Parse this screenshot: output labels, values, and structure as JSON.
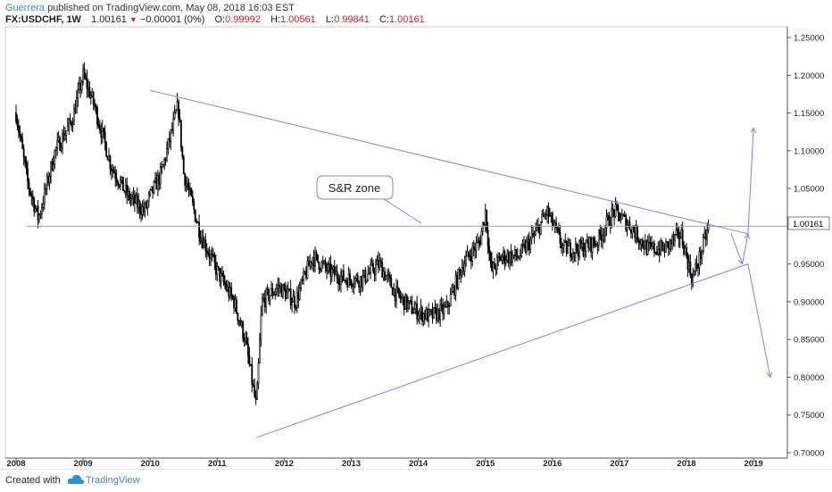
{
  "header": {
    "author": "Guerrera",
    "published": "published on TradingView.com, May 08, 2018 16:03 EST",
    "symbol": "FX:USDCHF, 1W",
    "price": "1.00161",
    "change": "−0.00001 (0%)",
    "o_label": "O:",
    "o_value": "0.99992",
    "h_label": "H:",
    "h_value": "1.00561",
    "l_label": "L:",
    "l_value": "0.99841",
    "c_label": "C:",
    "c_value": "1.00161"
  },
  "footer": {
    "created_with": "Created with",
    "brand": "TradingView",
    "logo_icon": "cloud-icon"
  },
  "colors": {
    "candle": "#000000",
    "trendline": "#8080f0",
    "sr_line": "#f08080",
    "price_label_bg": "#ffffff"
  },
  "chart_data": {
    "type": "line",
    "style": "candlestick",
    "interval": "1W",
    "x_ticks": [
      "2008",
      "2009",
      "2010",
      "2011",
      "2012",
      "2013",
      "2014",
      "2015",
      "2016",
      "2017",
      "2018",
      "2019"
    ],
    "y_ticks": [
      "0.70000",
      "0.75000",
      "0.80000",
      "0.85000",
      "0.90000",
      "0.95000",
      "1.00161",
      "1.05000",
      "1.10000",
      "1.15000",
      "1.20000",
      "1.25000"
    ],
    "ylim": [
      0.7,
      1.25
    ],
    "current_price_label": "1.00161",
    "annotation": "S&R zone",
    "series": [
      {
        "x": [
          "2008-01",
          "2008-03",
          "2008-05",
          "2008-08",
          "2008-11",
          "2009-01",
          "2009-03",
          "2009-06",
          "2009-09",
          "2009-12",
          "2010-01",
          "2010-03",
          "2010-06",
          "2010-07",
          "2010-10",
          "2011-01",
          "2011-04",
          "2011-06",
          "2011-08",
          "2011-09",
          "2011-12",
          "2012-03",
          "2012-06",
          "2012-09",
          "2012-12",
          "2013-03",
          "2013-06",
          "2013-09",
          "2013-12",
          "2014-03",
          "2014-06",
          "2014-09",
          "2014-12",
          "2015-01",
          "2015-02",
          "2015-04",
          "2015-07",
          "2015-10",
          "2015-12",
          "2016-03",
          "2016-06",
          "2016-09",
          "2016-12",
          "2017-03",
          "2017-06",
          "2017-09",
          "2017-12",
          "2018-01",
          "2018-02",
          "2018-03",
          "2018-05"
        ],
        "values": [
          1.15,
          1.06,
          1.01,
          1.1,
          1.14,
          1.2,
          1.16,
          1.08,
          1.04,
          1.02,
          1.04,
          1.07,
          1.16,
          1.07,
          0.99,
          0.94,
          0.9,
          0.85,
          0.76,
          0.9,
          0.92,
          0.9,
          0.96,
          0.94,
          0.93,
          0.93,
          0.95,
          0.91,
          0.89,
          0.88,
          0.89,
          0.95,
          0.98,
          1.02,
          0.94,
          0.96,
          0.96,
          0.99,
          1.02,
          0.97,
          0.97,
          0.98,
          1.02,
          1.0,
          0.97,
          0.97,
          0.99,
          0.96,
          0.93,
          0.95,
          1.0
        ]
      }
    ],
    "trendlines": [
      {
        "x": [
          "2010-01",
          "2018-12"
        ],
        "values": [
          1.18,
          0.99
        ]
      },
      {
        "x": [
          "2011-08",
          "2018-12"
        ],
        "values": [
          0.72,
          0.95
        ]
      }
    ],
    "support_resistance": 1.0,
    "projections": [
      {
        "x": [
          "2018-12",
          "2019-01"
        ],
        "values": [
          0.99,
          1.13
        ]
      },
      {
        "x": [
          "2018-09",
          "2018-11"
        ],
        "values": [
          0.99,
          0.95
        ]
      },
      {
        "x": [
          "2018-11",
          "2018-12"
        ],
        "values": [
          0.95,
          0.99
        ]
      },
      {
        "x": [
          "2018-12",
          "2019-04"
        ],
        "values": [
          0.95,
          0.8
        ]
      }
    ]
  }
}
